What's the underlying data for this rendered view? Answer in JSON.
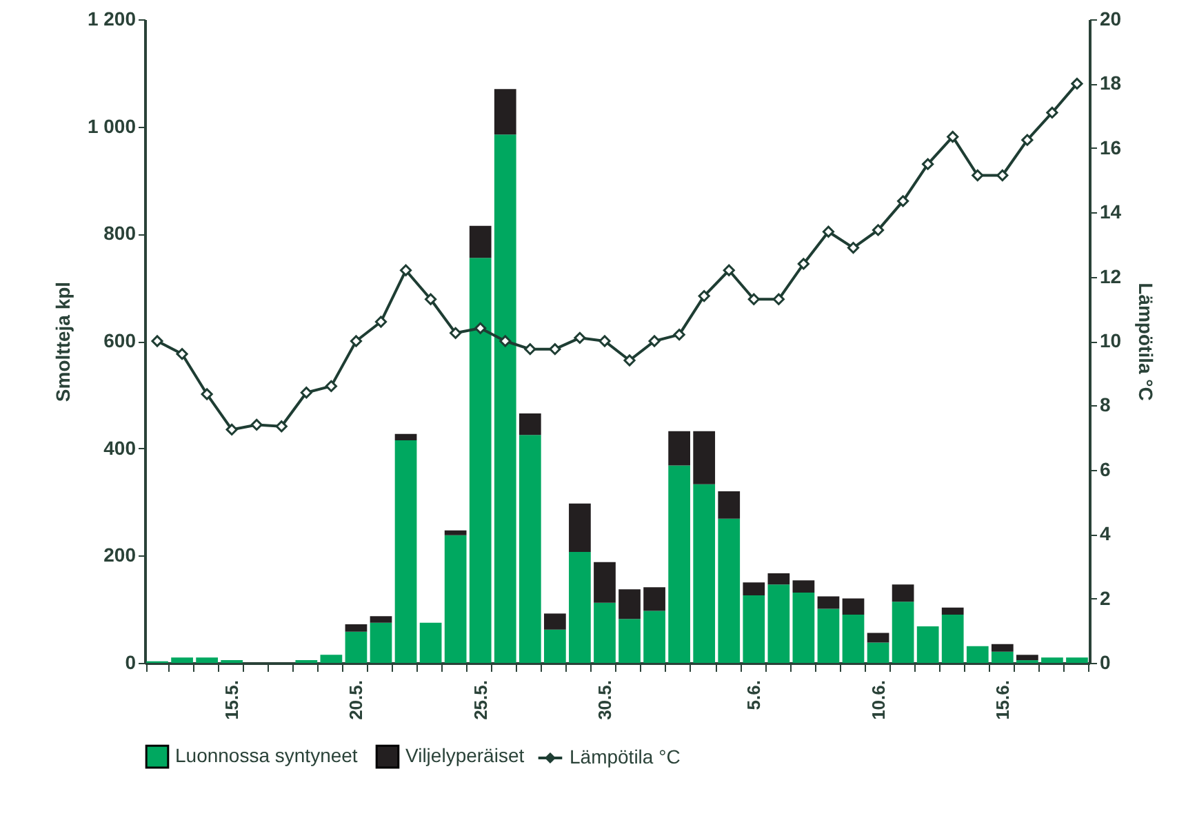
{
  "chart_data": {
    "type": "bar",
    "ylabel": "Smoltteja kpl",
    "y2label": "Lämpötila °C",
    "categories": [
      null,
      null,
      null,
      "15.5.",
      null,
      null,
      null,
      null,
      "20.5.",
      null,
      null,
      null,
      null,
      "25.5.",
      null,
      null,
      null,
      null,
      "30.5.",
      null,
      null,
      null,
      null,
      null,
      "5.6.",
      null,
      null,
      null,
      null,
      "10.6.",
      null,
      null,
      null,
      null,
      "15.6.",
      null,
      null,
      null
    ],
    "stacked": true,
    "series": [
      {
        "name": "Luonnossa syntyneet",
        "type": "bar",
        "color": "#00a860",
        "values": [
          3,
          10,
          10,
          5,
          0,
          0,
          5,
          15,
          58,
          75,
          415,
          75,
          238,
          755,
          985,
          425,
          62,
          207,
          112,
          82,
          97,
          368,
          333,
          269,
          126,
          146,
          131,
          101,
          90,
          38,
          114,
          68,
          90,
          31,
          21,
          5,
          10,
          10
        ]
      },
      {
        "name": "Viljelyperäiset",
        "type": "bar",
        "color": "#231f20",
        "values": [
          null,
          null,
          null,
          null,
          null,
          null,
          null,
          null,
          14,
          12,
          12,
          null,
          9,
          60,
          85,
          40,
          30,
          90,
          76,
          55,
          44,
          64,
          99,
          51,
          24,
          21,
          23,
          23,
          30,
          18,
          32,
          null,
          13,
          null,
          14,
          10,
          null,
          null
        ]
      },
      {
        "name": "Lämpötila °C",
        "type": "line",
        "axis": "y2",
        "color": "#1e3d33",
        "marker": "diamond",
        "line_style": "solid",
        "values": [
          10.0,
          9.6,
          8.35,
          7.25,
          7.4,
          7.35,
          8.4,
          8.6,
          10.0,
          10.6,
          12.2,
          11.3,
          10.25,
          10.4,
          10.0,
          9.75,
          9.75,
          10.1,
          10.0,
          9.4,
          10.0,
          10.2,
          11.4,
          12.2,
          11.3,
          11.3,
          12.4,
          13.4,
          12.9,
          13.45,
          14.35,
          15.5,
          16.35,
          15.15,
          15.15,
          16.25,
          17.1,
          18.0
        ]
      }
    ],
    "ylim": [
      0,
      1200
    ],
    "yticks": [
      0,
      200,
      400,
      600,
      800,
      {
        "value": 1000,
        "label": "1 000"
      },
      {
        "value": 1200,
        "label": "1 200"
      }
    ],
    "y2lim": [
      0,
      20
    ],
    "y2ticks": [
      0,
      2,
      4,
      6,
      8,
      10,
      12,
      14,
      16,
      18,
      20
    ],
    "grid": false,
    "legend": "bottom"
  }
}
